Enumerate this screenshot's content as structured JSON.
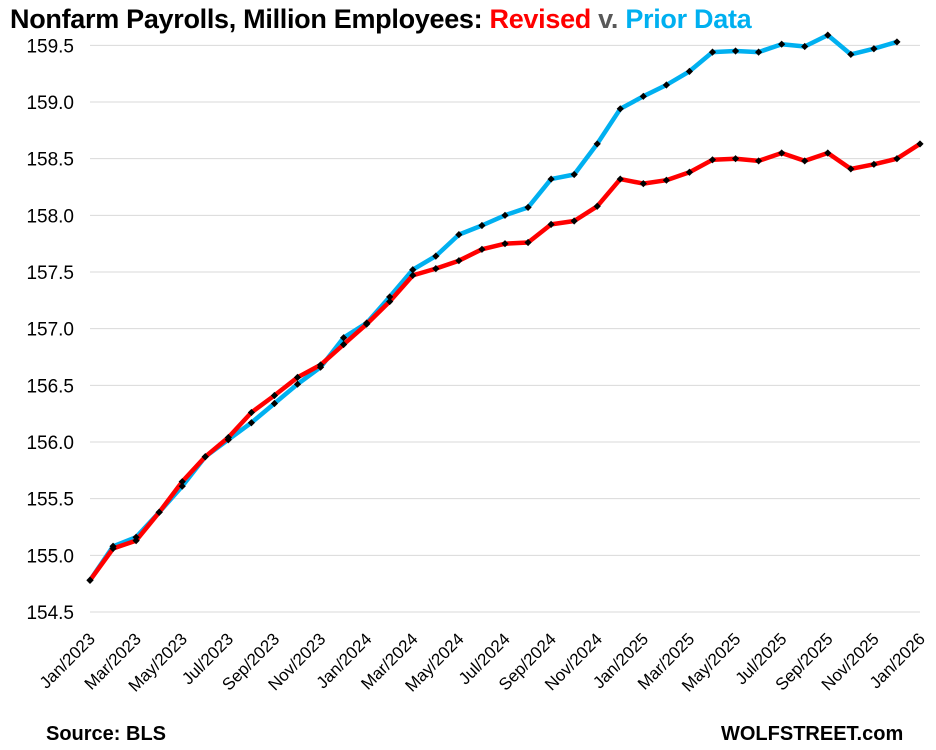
{
  "title": {
    "prefix": "Nonfarm Payrolls, Million Employees: ",
    "revised": "Revised",
    "middle": " v. ",
    "prior": "Prior Data"
  },
  "footer": {
    "source": "Source: BLS",
    "brand": "WOLFSTREET.com"
  },
  "colors": {
    "revised": "#ff0000",
    "prior": "#00b0f0",
    "marker": "#000000",
    "grid": "#d9d9d9"
  },
  "chart_data": {
    "type": "line",
    "title": "Nonfarm Payrolls, Million Employees: Revised v. Prior Data",
    "x": [
      "Jan/2023",
      "Feb/2023",
      "Mar/2023",
      "Apr/2023",
      "May/2023",
      "Jun/2023",
      "Jul/2023",
      "Aug/2023",
      "Sep/2023",
      "Oct/2023",
      "Nov/2023",
      "Dec/2023",
      "Jan/2024",
      "Feb/2024",
      "Mar/2024",
      "Apr/2024",
      "May/2024",
      "Jun/2024",
      "Jul/2024",
      "Aug/2024",
      "Sep/2024",
      "Oct/2024",
      "Nov/2024",
      "Dec/2024",
      "Jan/2025",
      "Feb/2025",
      "Mar/2025",
      "Apr/2025",
      "May/2025",
      "Jun/2025",
      "Jul/2025",
      "Aug/2025",
      "Sep/2025",
      "Oct/2025",
      "Nov/2025",
      "Dec/2025",
      "Jan/2026"
    ],
    "xticklabels": [
      "Jan/2023",
      "Mar/2023",
      "May/2023",
      "Jul/2023",
      "Sep/2023",
      "Nov/2023",
      "Jan/2024",
      "Mar/2024",
      "May/2024",
      "Jul/2024",
      "Sep/2024",
      "Nov/2024",
      "Jan/2025",
      "Mar/2025",
      "May/2025",
      "Jul/2025",
      "Sep/2025",
      "Nov/2025",
      "Jan/2026"
    ],
    "yticklabels": [
      "154.5",
      "155.0",
      "155.5",
      "156.0",
      "156.5",
      "157.0",
      "157.5",
      "158.0",
      "158.5",
      "159.0",
      "159.5"
    ],
    "ylim": [
      154.5,
      159.75
    ],
    "grid": true,
    "markers": true,
    "series": [
      {
        "name": "Prior Data",
        "color": "#00b0f0",
        "values": [
          154.78,
          155.08,
          155.16,
          155.38,
          155.61,
          155.87,
          156.02,
          156.17,
          156.34,
          156.51,
          156.66,
          156.92,
          157.05,
          157.28,
          157.52,
          157.64,
          157.83,
          157.91,
          158.0,
          158.07,
          158.32,
          158.36,
          158.63,
          158.94,
          159.05,
          159.15,
          159.27,
          159.44,
          159.45,
          159.44,
          159.51,
          159.49,
          159.59,
          159.42,
          159.47,
          159.53,
          null
        ]
      },
      {
        "name": "Revised",
        "color": "#ff0000",
        "values": [
          154.78,
          155.06,
          155.13,
          155.38,
          155.65,
          155.87,
          156.04,
          156.26,
          156.41,
          156.57,
          156.68,
          156.86,
          157.04,
          157.24,
          157.47,
          157.53,
          157.6,
          157.7,
          157.75,
          157.76,
          157.92,
          157.95,
          158.08,
          158.32,
          158.28,
          158.31,
          158.38,
          158.49,
          158.5,
          158.48,
          158.55,
          158.48,
          158.55,
          158.41,
          158.45,
          158.5,
          158.63
        ]
      }
    ]
  }
}
